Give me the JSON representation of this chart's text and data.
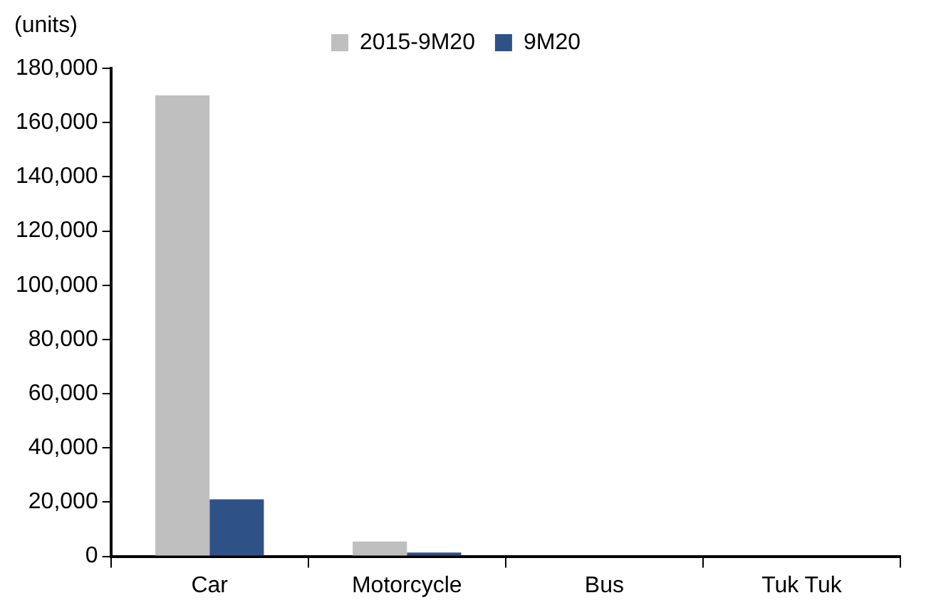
{
  "chart_data": {
    "type": "bar",
    "ylabel": "(units)",
    "categories": [
      "Car",
      "Motorcycle",
      "Bus",
      "Tuk Tuk"
    ],
    "series": [
      {
        "name": "2015-9M20",
        "color": "#bfbfbf",
        "values": [
          170000,
          5500,
          0,
          0
        ]
      },
      {
        "name": "9M20",
        "color": "#2f5286",
        "values": [
          21000,
          1400,
          null,
          0
        ]
      }
    ],
    "ylim": [
      0,
      180000
    ],
    "yticks": [
      0,
      {
        "value": 20000,
        "label": "20,000"
      },
      {
        "value": 40000,
        "label": "40,000"
      },
      {
        "value": 60000,
        "label": "60,000"
      },
      {
        "value": 80000,
        "label": "80,000"
      },
      {
        "value": 100000,
        "label": "100,000"
      },
      {
        "value": 120000,
        "label": "120,000"
      },
      {
        "value": 140000,
        "label": "140,000"
      },
      {
        "value": 160000,
        "label": "160,000"
      },
      {
        "value": 180000,
        "label": "180,000"
      }
    ],
    "grid": false,
    "legend": "top"
  }
}
